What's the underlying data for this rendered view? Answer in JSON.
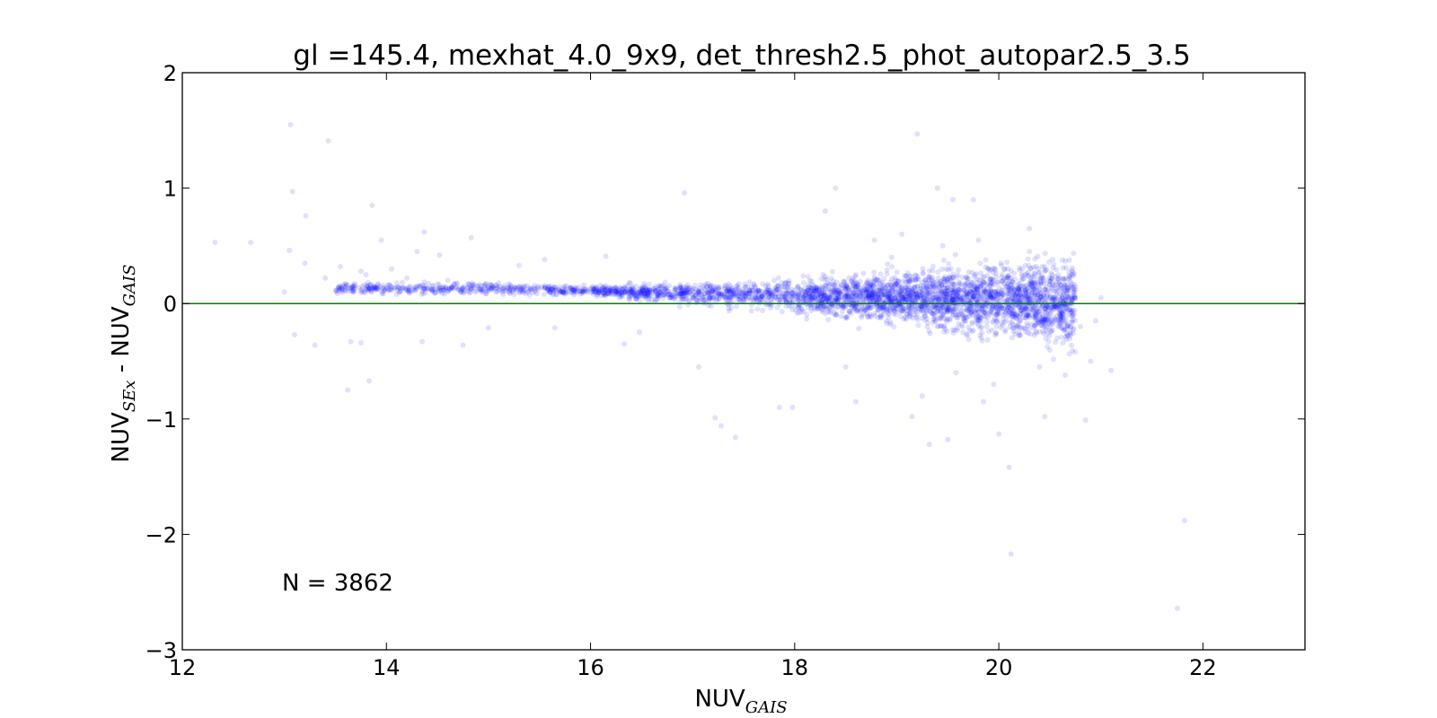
{
  "chart_data": {
    "type": "scatter",
    "title": "gl =145.4, mexhat_4.0_9x9, det_thresh2.5_phot_autopar2.5_3.5",
    "xlabel": {
      "main": "NUV",
      "sub": "GAIS"
    },
    "ylabel": {
      "main_1": "NUV",
      "sub_1": "SEx",
      "separator": " - ",
      "main_2": "NUV",
      "sub_2": "GAIS"
    },
    "xlim": [
      12,
      23
    ],
    "ylim": [
      -3,
      2
    ],
    "xticks": [
      {
        "value": 12,
        "label": "12"
      },
      {
        "value": 14,
        "label": "14"
      },
      {
        "value": 16,
        "label": "16"
      },
      {
        "value": 18,
        "label": "18"
      },
      {
        "value": 20,
        "label": "20"
      },
      {
        "value": 22,
        "label": "22"
      }
    ],
    "yticks": [
      {
        "value": -3,
        "label": "−3"
      },
      {
        "value": -2,
        "label": "−2"
      },
      {
        "value": -1,
        "label": "−1"
      },
      {
        "value": 0,
        "label": "0"
      },
      {
        "value": 1,
        "label": "1"
      },
      {
        "value": 2,
        "label": "2"
      }
    ],
    "grid": false,
    "annotation": "N = 3862",
    "reference_line": {
      "y": 0,
      "color": "#008000"
    },
    "point_color": "#0000ff",
    "point_alpha": 0.12,
    "sample_size": 3862,
    "series": [
      {
        "points": [
          [
            12.32,
            0.53
          ],
          [
            12.67,
            0.53
          ],
          [
            13.06,
            1.55
          ],
          [
            13.08,
            0.97
          ],
          [
            13.05,
            0.46
          ],
          [
            13.21,
            0.76
          ],
          [
            13.43,
            1.41
          ],
          [
            13.1,
            -0.27
          ],
          [
            13.3,
            -0.36
          ],
          [
            13.62,
            -0.75
          ],
          [
            13.83,
            -0.67
          ],
          [
            13.86,
            0.85
          ],
          [
            13.95,
            0.55
          ],
          [
            13.8,
            0.25
          ],
          [
            13.75,
            0.28
          ],
          [
            13.55,
            0.32
          ],
          [
            13.65,
            -0.33
          ],
          [
            13.75,
            -0.34
          ],
          [
            14.05,
            0.3
          ],
          [
            14.2,
            0.22
          ],
          [
            14.37,
            0.62
          ],
          [
            14.3,
            0.45
          ],
          [
            14.35,
            -0.33
          ],
          [
            14.52,
            0.42
          ],
          [
            14.75,
            -0.36
          ],
          [
            14.83,
            0.57
          ],
          [
            15.0,
            -0.21
          ],
          [
            15.3,
            0.33
          ],
          [
            15.55,
            0.38
          ],
          [
            15.65,
            -0.21
          ],
          [
            16.15,
            0.41
          ],
          [
            16.33,
            -0.35
          ],
          [
            16.48,
            -0.25
          ],
          [
            16.92,
            0.96
          ],
          [
            17.06,
            -0.55
          ],
          [
            17.22,
            -0.99
          ],
          [
            17.28,
            -1.06
          ],
          [
            17.42,
            -1.16
          ],
          [
            17.85,
            -0.9
          ],
          [
            17.98,
            -0.9
          ],
          [
            18.3,
            0.8
          ],
          [
            18.4,
            1.0
          ],
          [
            18.5,
            -0.55
          ],
          [
            18.6,
            -0.85
          ],
          [
            18.78,
            0.55
          ],
          [
            19.05,
            0.6
          ],
          [
            19.15,
            -0.98
          ],
          [
            19.2,
            1.47
          ],
          [
            19.25,
            -0.8
          ],
          [
            19.32,
            -1.22
          ],
          [
            19.4,
            1.0
          ],
          [
            19.5,
            -1.18
          ],
          [
            19.55,
            0.9
          ],
          [
            19.58,
            -0.6
          ],
          [
            19.75,
            0.9
          ],
          [
            19.85,
            -0.85
          ],
          [
            19.95,
            -0.7
          ],
          [
            20.0,
            -1.13
          ],
          [
            20.1,
            -1.42
          ],
          [
            20.12,
            -2.17
          ],
          [
            20.3,
            0.65
          ],
          [
            20.4,
            -0.55
          ],
          [
            20.45,
            -0.98
          ],
          [
            20.65,
            -0.62
          ],
          [
            20.75,
            -0.42
          ],
          [
            20.85,
            -1.01
          ],
          [
            20.9,
            -0.5
          ],
          [
            21.0,
            0.05
          ],
          [
            21.1,
            -0.58
          ],
          [
            21.75,
            -2.64
          ],
          [
            21.82,
            -1.88
          ],
          [
            13.0,
            0.1
          ],
          [
            13.2,
            0.35
          ],
          [
            13.4,
            0.22
          ],
          [
            13.85,
            0.12
          ],
          [
            14.1,
            0.18
          ],
          [
            14.6,
            0.2
          ],
          [
            14.9,
            0.15
          ],
          [
            15.1,
            0.18
          ],
          [
            15.4,
            0.12
          ],
          [
            15.8,
            0.14
          ],
          [
            16.2,
            0.11
          ],
          [
            16.6,
            0.1
          ],
          [
            17.0,
            0.08
          ],
          [
            17.5,
            0.07
          ],
          [
            17.9,
            0.06
          ],
          [
            18.2,
            0.05
          ],
          [
            18.7,
            0.04
          ],
          [
            19.2,
            0.06
          ],
          [
            19.7,
            0.08
          ],
          [
            20.1,
            0.07
          ],
          [
            20.5,
            0.05
          ],
          [
            20.8,
            -0.2
          ],
          [
            20.95,
            -0.15
          ],
          [
            19.9,
            0.3
          ],
          [
            19.6,
            0.25
          ],
          [
            19.3,
            -0.2
          ],
          [
            18.9,
            -0.15
          ],
          [
            18.6,
            0.25
          ],
          [
            18.4,
            -0.1
          ],
          [
            20.2,
            -0.25
          ],
          [
            20.3,
            0.45
          ],
          [
            19.8,
            0.55
          ],
          [
            19.45,
            0.5
          ],
          [
            18.95,
            0.4
          ]
        ]
      }
    ]
  }
}
